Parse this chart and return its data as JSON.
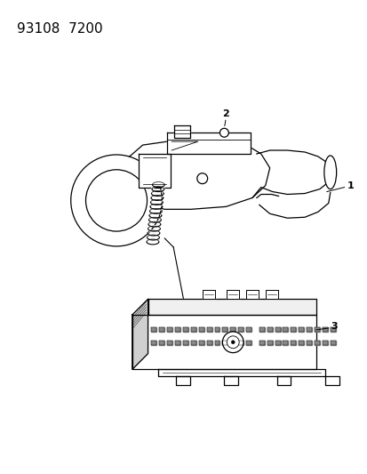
{
  "title_text": "93108  7200",
  "background_color": "#ffffff",
  "line_color": "#000000",
  "label1": "1",
  "label2": "2",
  "label3": "3",
  "title_fontsize": 11,
  "label_fontsize": 8
}
